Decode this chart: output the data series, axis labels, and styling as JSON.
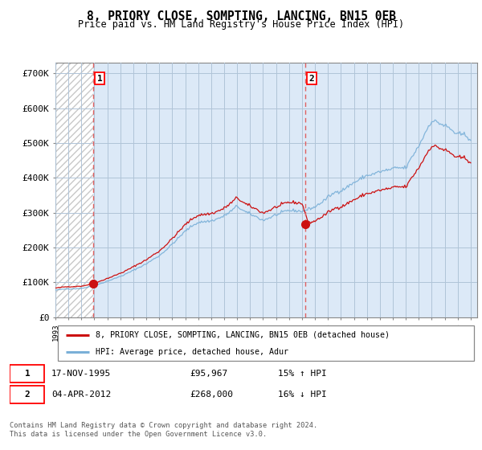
{
  "title": "8, PRIORY CLOSE, SOMPTING, LANCING, BN15 0EB",
  "subtitle": "Price paid vs. HM Land Registry's House Price Index (HPI)",
  "ylabel_ticks": [
    "£0",
    "£100K",
    "£200K",
    "£300K",
    "£400K",
    "£500K",
    "£600K",
    "£700K"
  ],
  "ytick_values": [
    0,
    100000,
    200000,
    300000,
    400000,
    500000,
    600000,
    700000
  ],
  "ylim": [
    0,
    730000
  ],
  "xlim_start": 1993.0,
  "xlim_end": 2025.5,
  "marker1_x": 1995.9,
  "marker1_y": 95967,
  "marker2_x": 2012.25,
  "marker2_y": 268000,
  "vline1_x": 1995.9,
  "vline2_x": 2012.25,
  "legend_line1": "8, PRIORY CLOSE, SOMPTING, LANCING, BN15 0EB (detached house)",
  "legend_line2": "HPI: Average price, detached house, Adur",
  "table_row1": [
    "1",
    "17-NOV-1995",
    "£95,967",
    "15% ↑ HPI"
  ],
  "table_row2": [
    "2",
    "04-APR-2012",
    "£268,000",
    "16% ↓ HPI"
  ],
  "footer": "Contains HM Land Registry data © Crown copyright and database right 2024.\nThis data is licensed under the Open Government Licence v3.0.",
  "bg_blue": "#dce9f7",
  "bg_hatch_color": "#c8c8c8",
  "grid_color": "#b0c4d8",
  "hpi_line_color": "#7ab0d8",
  "price_line_color": "#cc1111",
  "vline_color": "#e06060",
  "background_color": "#ffffff"
}
